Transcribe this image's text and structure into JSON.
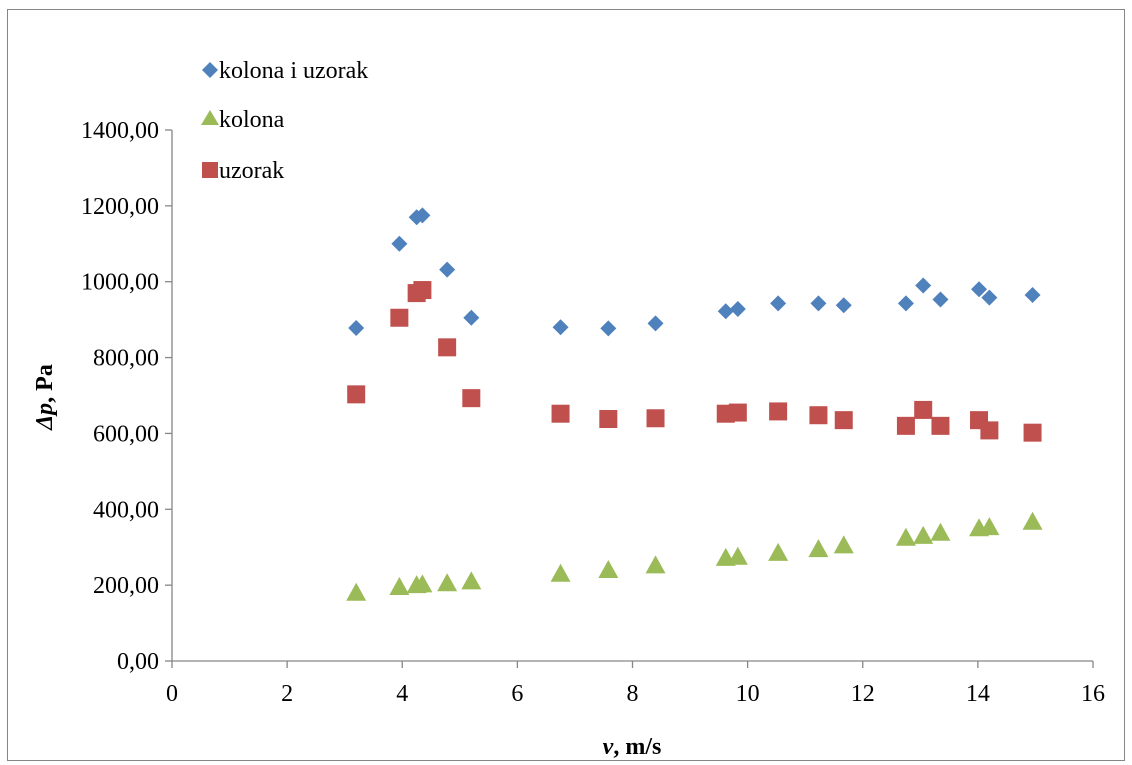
{
  "chart_data": {
    "type": "scatter",
    "title": "",
    "xlabel": {
      "symbol": "v",
      "unit": ", m/s"
    },
    "ylabel": {
      "symbol": "Δp",
      "unit": ", Pa"
    },
    "xlim": [
      0,
      16
    ],
    "ylim": [
      0,
      1400
    ],
    "x_ticks": [
      0,
      2,
      4,
      6,
      8,
      10,
      12,
      14,
      16
    ],
    "y_ticks": [
      0,
      200,
      400,
      600,
      800,
      1000,
      1200,
      1400
    ],
    "y_tick_labels": [
      "0,00",
      "200,00",
      "400,00",
      "600,00",
      "800,00",
      "1000,00",
      "1200,00",
      "1400,00"
    ],
    "grid": false,
    "legend_position": "top-left",
    "x": [
      3.2,
      3.95,
      4.25,
      4.35,
      4.78,
      5.2,
      6.75,
      7.58,
      8.4,
      9.62,
      9.83,
      10.53,
      11.23,
      11.67,
      12.75,
      13.05,
      13.35,
      14.02,
      14.2,
      14.95
    ],
    "series": [
      {
        "name": "kolona i uzorak",
        "marker": "diamond",
        "color": "#4f81bd",
        "values": [
          878,
          1100,
          1170,
          1175,
          1032,
          905,
          880,
          877,
          890,
          922,
          928,
          943,
          943,
          938,
          943,
          990,
          953,
          980,
          958,
          965
        ]
      },
      {
        "name": "kolona",
        "marker": "triangle",
        "color": "#9bbb59",
        "values": [
          180,
          195,
          200,
          202,
          205,
          210,
          230,
          240,
          252,
          272,
          275,
          285,
          295,
          305,
          325,
          330,
          338,
          350,
          353,
          367
        ]
      },
      {
        "name": "uzorak",
        "marker": "square",
        "color": "#c0504d",
        "values": [
          703,
          905,
          970,
          978,
          827,
          693,
          652,
          638,
          640,
          652,
          655,
          658,
          648,
          635,
          620,
          662,
          620,
          635,
          608,
          602
        ]
      }
    ]
  }
}
